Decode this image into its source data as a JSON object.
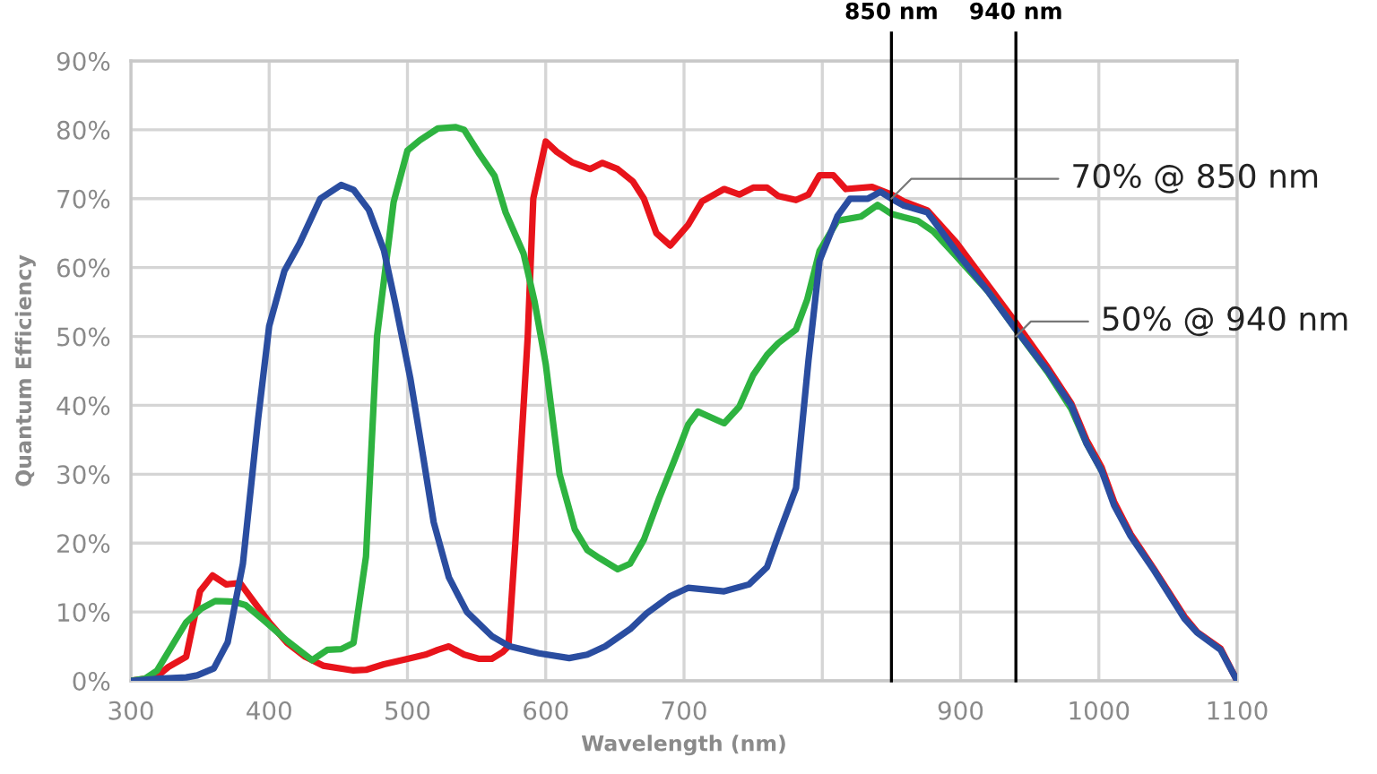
{
  "chart_data": {
    "type": "line",
    "xlabel": "Wavelength (nm)",
    "ylabel": "Quantum Efficiency",
    "xlim": [
      300,
      1100
    ],
    "ylim": [
      0,
      90
    ],
    "xticks": [
      300,
      400,
      500,
      600,
      700,
      {
        "value": 800,
        "label": null
      },
      900,
      1000,
      1100
    ],
    "yticks": [
      {
        "value": 0,
        "label": "0%"
      },
      {
        "value": 10,
        "label": "10%"
      },
      {
        "value": 20,
        "label": "20%"
      },
      {
        "value": 30,
        "label": "30%"
      },
      {
        "value": 40,
        "label": "40%"
      },
      {
        "value": 50,
        "label": "50%"
      },
      {
        "value": 60,
        "label": "60%"
      },
      {
        "value": 70,
        "label": "70%"
      },
      {
        "value": 80,
        "label": "80%"
      },
      {
        "value": 90,
        "label": "90%"
      }
    ],
    "grid": true,
    "marker": "none",
    "line_style": "solid",
    "series": [
      {
        "color": "#e8141b",
        "x": [
          300,
          318,
          327,
          340,
          350,
          359,
          369,
          379,
          387,
          400,
          413,
          426,
          439,
          461,
          470,
          483,
          500,
          513,
          522,
          530,
          541,
          552,
          561,
          569,
          573,
          578,
          587,
          591,
          600,
          608,
          619,
          632,
          641,
          652,
          663,
          671,
          680,
          690,
          703,
          713,
          729,
          740,
          750,
          760,
          768,
          781,
          790,
          798,
          808,
          817,
          836,
          850,
          859,
          876,
          897,
          920,
          940,
          963,
          980,
          991,
          1002,
          1011,
          1023,
          1040,
          1062,
          1071,
          1088,
          1100
        ],
        "values": [
          0,
          0.5,
          2,
          3.5,
          13,
          15.3,
          14,
          14.2,
          12,
          8.5,
          5.5,
          3.5,
          2.2,
          1.5,
          1.6,
          2.4,
          3.2,
          3.8,
          4.5,
          5,
          3.8,
          3.2,
          3.2,
          4.2,
          5,
          20,
          50,
          70,
          78.3,
          76.8,
          75.3,
          74.3,
          75.2,
          74.3,
          72.5,
          70,
          65,
          63.2,
          66.2,
          69.6,
          71.4,
          70.6,
          71.6,
          71.6,
          70.4,
          69.8,
          70.6,
          73.4,
          73.4,
          71.4,
          71.7,
          70.6,
          69.6,
          68.3,
          63.6,
          57.4,
          52,
          45.5,
          40.3,
          35,
          31,
          26,
          21.3,
          16.2,
          9.3,
          7.1,
          4.7,
          0
        ]
      },
      {
        "color": "#2eb340",
        "x": [
          300,
          310,
          319,
          331,
          340,
          351,
          361,
          374,
          383,
          396,
          413,
          431,
          442,
          452,
          461,
          470,
          478,
          490,
          500,
          509,
          522,
          535,
          541,
          552,
          563,
          571,
          584,
          592,
          600,
          610,
          621,
          630,
          639,
          652,
          661,
          671,
          682,
          693,
          703,
          710,
          729,
          740,
          750,
          760,
          768,
          781,
          789,
          798,
          811,
          828,
          840,
          850,
          859,
          869,
          880,
          897,
          920,
          940,
          963,
          980,
          991,
          1002
        ],
        "values": [
          0,
          0.3,
          1.5,
          5.5,
          8.5,
          10.5,
          11.6,
          11.5,
          11,
          8.8,
          5.8,
          3,
          4.5,
          4.6,
          5.5,
          18,
          50,
          69.5,
          77,
          78.5,
          80.2,
          80.4,
          80,
          76.5,
          73.3,
          68,
          62,
          55,
          46,
          30,
          22,
          19,
          17.8,
          16.2,
          17,
          20.5,
          26.5,
          32,
          37.2,
          39.1,
          37.4,
          39.8,
          44.4,
          47.3,
          49,
          51,
          55.3,
          62.4,
          66.8,
          67.4,
          69.1,
          67.8,
          67.3,
          66.8,
          65.3,
          61.6,
          56.5,
          51,
          44.8,
          39.5,
          34.5,
          30.5
        ]
      },
      {
        "color": "#2a4da0",
        "x": [
          300,
          320,
          340,
          348,
          360,
          370,
          381,
          392,
          400,
          411,
          422,
          437,
          452,
          461,
          472,
          483,
          491,
          502,
          511,
          519,
          530,
          543,
          561,
          574,
          595,
          617,
          630,
          643,
          661,
          673,
          690,
          703,
          729,
          747,
          760,
          768,
          781,
          790,
          798,
          811,
          820,
          833,
          842,
          850,
          859,
          876,
          889,
          900,
          920,
          940,
          963,
          980,
          991,
          1002,
          1011,
          1023,
          1040,
          1062,
          1071,
          1088,
          1100
        ],
        "values": [
          0,
          0.3,
          0.5,
          0.8,
          1.8,
          5.6,
          17,
          38,
          51.5,
          59.5,
          63.5,
          70,
          72,
          71.3,
          68.4,
          62.5,
          55,
          44,
          33,
          23,
          15,
          10,
          6.5,
          5,
          4,
          3.3,
          3.8,
          5,
          7.5,
          9.8,
          12.3,
          13.5,
          13,
          14,
          16.5,
          21,
          28,
          46.5,
          61,
          67.5,
          70,
          70,
          71,
          70,
          69,
          68,
          64.5,
          61.5,
          56.5,
          51,
          45,
          40,
          34.5,
          30.5,
          25.5,
          21,
          16,
          9,
          7,
          4.5,
          0
        ]
      }
    ],
    "ref_lines": [
      {
        "axis": "x",
        "value": 850,
        "label": "850 nm",
        "color": "#000000"
      },
      {
        "axis": "x",
        "value": 940,
        "label": "940 nm",
        "color": "#000000"
      }
    ],
    "annotations": [
      {
        "text": "70% @ 850 nm",
        "x": 850,
        "y": 70
      },
      {
        "text": "50% @ 940 nm",
        "x": 940,
        "y": 50
      }
    ]
  }
}
